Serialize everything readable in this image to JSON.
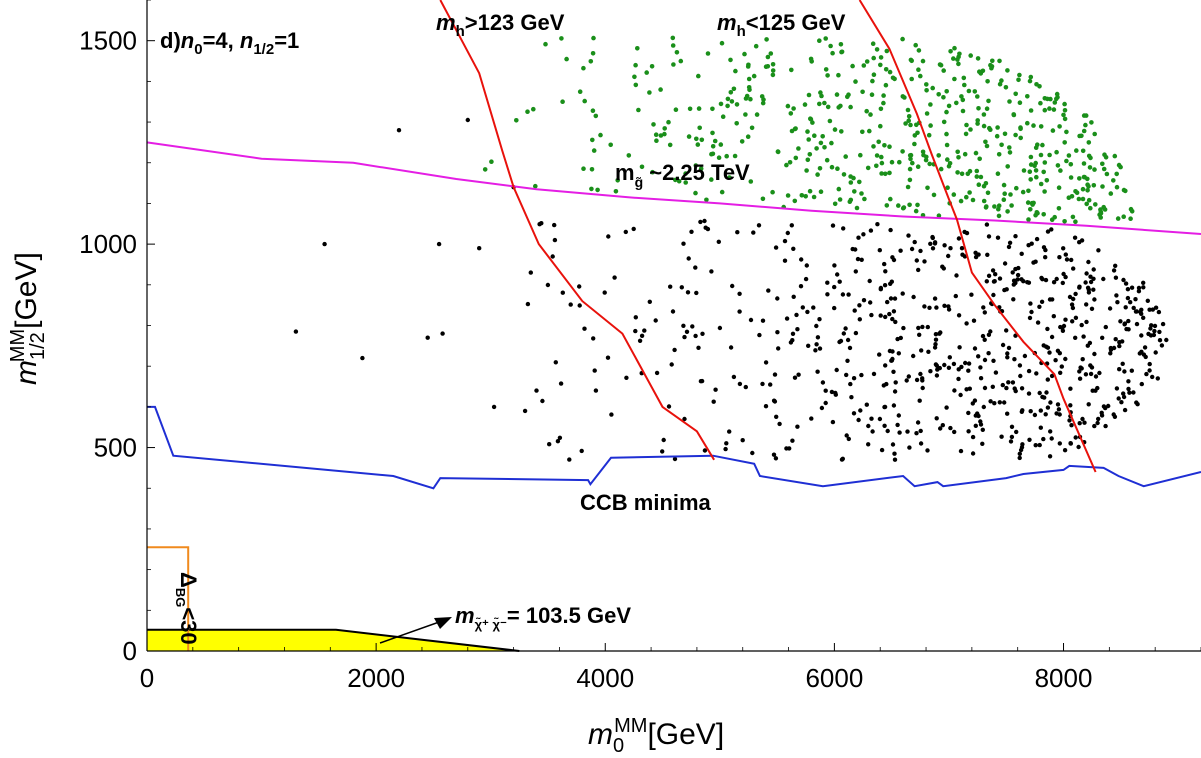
{
  "chart_data": {
    "type": "scatter",
    "title": "d)n0=4, n1/2=1",
    "title_parts": {
      "prefix": "d)",
      "n0": "n",
      "n0_sub": "0",
      "n0_val": "=4, ",
      "nh": "n",
      "nh_sub": "1/2",
      "nh_val": "=1"
    },
    "xlabel": {
      "base": "m",
      "sub": "0",
      "sup": "MM",
      "unit": "[GeV]"
    },
    "ylabel": {
      "base": "m",
      "sub": "1/2",
      "sup": "MM",
      "unit": "[GeV]"
    },
    "xlim": [
      0,
      9200
    ],
    "ylim": [
      0,
      1600
    ],
    "xticks": [
      0,
      2000,
      4000,
      6000,
      8000
    ],
    "yticks": [
      0,
      500,
      1000,
      1500
    ],
    "colors": {
      "black": "#000000",
      "green": "#1a8f1a",
      "red": "#e8120c",
      "magenta": "#e41ee4",
      "blue": "#1f2fd4",
      "yellow": "#ffff00",
      "orange": "#f08a1e"
    },
    "series": [
      {
        "name": "points (black)",
        "color": "#000000",
        "seed": 11,
        "count": 700,
        "extra": [
          [
            2200,
            1280
          ],
          [
            2800,
            1305
          ],
          [
            1550,
            1000
          ],
          [
            2550,
            1000
          ],
          [
            2900,
            990
          ],
          [
            1300,
            785
          ],
          [
            2450,
            770
          ],
          [
            2580,
            780
          ],
          [
            1880,
            720
          ],
          [
            3200,
            1140
          ],
          [
            3030,
            600
          ],
          [
            3300,
            590
          ],
          [
            3400,
            640
          ],
          [
            3560,
            1010
          ],
          [
            3350,
            930
          ]
        ]
      },
      {
        "name": "points (green)",
        "color": "#1a8f1a",
        "seed": 23,
        "count": 560
      }
    ],
    "curves": {
      "mh_gt_123": {
        "label": "mh>123 GeV",
        "color": "#e8120c",
        "points": [
          [
            2560,
            1600
          ],
          [
            2900,
            1420
          ],
          [
            3100,
            1230
          ],
          [
            3200,
            1140
          ],
          [
            3420,
            1000
          ],
          [
            3800,
            860
          ],
          [
            4150,
            780
          ],
          [
            4500,
            600
          ],
          [
            4800,
            540
          ],
          [
            4950,
            470
          ]
        ]
      },
      "mh_lt_125": {
        "label": "mh<125 GeV",
        "color": "#e8120c",
        "points": [
          [
            6220,
            1600
          ],
          [
            6480,
            1480
          ],
          [
            6720,
            1320
          ],
          [
            6850,
            1220
          ],
          [
            7000,
            1110
          ],
          [
            7070,
            1060
          ],
          [
            7200,
            930
          ],
          [
            7400,
            850
          ],
          [
            7650,
            760
          ],
          [
            7920,
            680
          ],
          [
            8000,
            620
          ],
          [
            8280,
            440
          ]
        ]
      },
      "gluino": {
        "label": "m~g ~2.25 TeV",
        "color": "#e41ee4",
        "points": [
          [
            0,
            1250
          ],
          [
            1000,
            1210
          ],
          [
            1800,
            1200
          ],
          [
            2700,
            1160
          ],
          [
            3400,
            1135
          ],
          [
            4200,
            1115
          ],
          [
            5000,
            1100
          ],
          [
            5800,
            1082
          ],
          [
            6600,
            1068
          ],
          [
            7400,
            1058
          ],
          [
            8200,
            1045
          ],
          [
            9200,
            1025
          ]
        ]
      },
      "ccb": {
        "label": "CCB minima",
        "color": "#1f2fd4",
        "points": [
          [
            0,
            600
          ],
          [
            70,
            600
          ],
          [
            230,
            480
          ],
          [
            2150,
            430
          ],
          [
            2500,
            400
          ],
          [
            2560,
            425
          ],
          [
            3850,
            420
          ],
          [
            3870,
            410
          ],
          [
            4050,
            475
          ],
          [
            4940,
            480
          ],
          [
            5300,
            460
          ],
          [
            5350,
            430
          ],
          [
            5900,
            405
          ],
          [
            6600,
            430
          ],
          [
            6700,
            405
          ],
          [
            6900,
            415
          ],
          [
            6950,
            405
          ],
          [
            7500,
            425
          ],
          [
            7650,
            435
          ],
          [
            8000,
            445
          ],
          [
            8050,
            455
          ],
          [
            8350,
            450
          ],
          [
            8480,
            430
          ],
          [
            8700,
            405
          ],
          [
            9200,
            440
          ]
        ]
      },
      "chargino": {
        "label": "mχ+χ- = 103.5 GeV",
        "color": "#000000",
        "points": [
          [
            0,
            52
          ],
          [
            1650,
            52
          ],
          [
            3250,
            0
          ]
        ]
      },
      "delta_bg": {
        "label": "ΔBG<30",
        "color": "#f08a1e",
        "points": [
          [
            0,
            255
          ],
          [
            360,
            255
          ],
          [
            360,
            0
          ]
        ]
      }
    },
    "annotations": {
      "mh123": {
        "base": "m",
        "sub": "h",
        "rest": ">123 GeV"
      },
      "mh125": {
        "base": "m",
        "sub": "h",
        "rest": "<125 GeV"
      },
      "gluino": {
        "base": "m",
        "sub": "g̃",
        "rest": " ~2.25 TeV"
      },
      "ccb": "CCB minima",
      "chargino": {
        "base": "m",
        "sub": "χ̃⁺ χ̃⁻",
        "rest": "= 103.5 GeV"
      },
      "delta": {
        "base": "Δ",
        "sub": "BG",
        "rest": "<30"
      }
    }
  }
}
